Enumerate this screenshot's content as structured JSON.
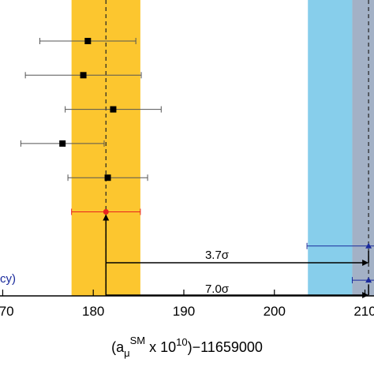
{
  "chart_data": {
    "type": "errorbar",
    "xlabel": "(a",
    "xlabel_sub": "μ",
    "xlabel_sup": "SM",
    "xlabel_rest": " x 10",
    "xlabel_exp": "10",
    "xlabel_tail": ")−11659000",
    "xlim": [
      169.7,
      211
    ],
    "xticks": [
      170,
      180,
      190,
      200,
      210
    ],
    "categories": [
      null,
      null,
      null,
      null,
      null,
      null,
      null,
      null
    ],
    "values": [
      179.4,
      178.9,
      182.2,
      176.6,
      181.6,
      181.4,
      210.4,
      210.4
    ],
    "errors": [
      5.3,
      6.4,
      5.3,
      4.6,
      4.4,
      3.8,
      6.8,
      1.8
    ],
    "colors": [
      "#000000",
      "#000000",
      "#000000",
      "#000000",
      "#000000",
      "#e8231f",
      "#1a2a9c",
      "#1a2a9c"
    ],
    "bands": [
      {
        "x": [
          177.6,
          185.2
        ],
        "color": "#fcc62f"
      },
      {
        "x": [
          203.7,
          208.6
        ],
        "color": "#87ceeb"
      },
      {
        "x": [
          208.6,
          211
        ],
        "color": "#a3b1c6"
      }
    ],
    "vlines": [
      181.4,
      210.4
    ],
    "annotations": [
      "3.7σ",
      "7.0σ",
      "cy)"
    ]
  }
}
